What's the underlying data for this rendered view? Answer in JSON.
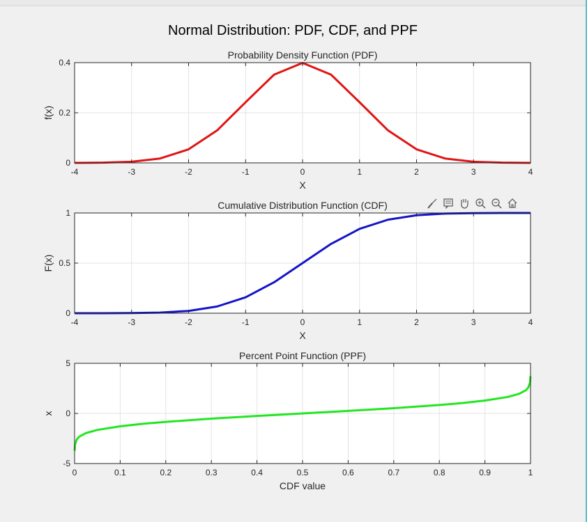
{
  "figure": {
    "title": "Normal Distribution: PDF, CDF, and PPF"
  },
  "toolbar": {
    "tools": [
      "brush-icon",
      "data-tips-icon",
      "pan-hand-icon",
      "zoom-in-icon",
      "zoom-out-icon",
      "home-icon"
    ]
  },
  "chart_data": [
    {
      "id": "pdf",
      "type": "line",
      "title": "Probability Density Function (PDF)",
      "xlabel": "X",
      "ylabel": "f(x)",
      "xlim": [
        -4,
        4
      ],
      "ylim": [
        0,
        0.4
      ],
      "xticks": [
        -4,
        -3,
        -2,
        -1,
        0,
        1,
        2,
        3,
        4
      ],
      "yticks": [
        0,
        0.2,
        0.4
      ],
      "xtick_labels": [
        "-4",
        "-3",
        "-2",
        "-1",
        "0",
        "1",
        "2",
        "3",
        "4"
      ],
      "ytick_labels": [
        "0",
        "0.2",
        "0.4"
      ],
      "grid": true,
      "series": [
        {
          "color": "#e01414",
          "x": [
            -4,
            -3.5,
            -3,
            -2.5,
            -2,
            -1.5,
            -1,
            -0.5,
            0,
            0.5,
            1,
            1.5,
            2,
            2.5,
            3,
            3.5,
            4
          ],
          "y": [
            0.0001,
            0.0009,
            0.0044,
            0.0175,
            0.054,
            0.1295,
            0.242,
            0.3521,
            0.3989,
            0.3521,
            0.242,
            0.1295,
            0.054,
            0.0175,
            0.0044,
            0.0009,
            0.0001
          ]
        }
      ]
    },
    {
      "id": "cdf",
      "type": "line",
      "title": "Cumulative Distribution Function (CDF)",
      "xlabel": "X",
      "ylabel": "F(x)",
      "xlim": [
        -4,
        4
      ],
      "ylim": [
        0,
        1
      ],
      "xticks": [
        -4,
        -3,
        -2,
        -1,
        0,
        1,
        2,
        3,
        4
      ],
      "yticks": [
        0,
        0.5,
        1
      ],
      "xtick_labels": [
        "-4",
        "-3",
        "-2",
        "-1",
        "0",
        "1",
        "2",
        "3",
        "4"
      ],
      "ytick_labels": [
        "0",
        "0.5",
        "1"
      ],
      "grid": true,
      "series": [
        {
          "color": "#1414c8",
          "x": [
            -4,
            -3.5,
            -3,
            -2.5,
            -2,
            -1.5,
            -1,
            -0.5,
            0,
            0.5,
            1,
            1.5,
            2,
            2.5,
            3,
            3.5,
            4
          ],
          "y": [
            0.0,
            0.0002,
            0.0013,
            0.0062,
            0.0228,
            0.0668,
            0.1587,
            0.3085,
            0.5,
            0.6915,
            0.8413,
            0.9332,
            0.9772,
            0.9938,
            0.9987,
            0.9998,
            1.0
          ]
        }
      ]
    },
    {
      "id": "ppf",
      "type": "line",
      "title": "Percent Point Function (PPF)",
      "xlabel": "CDF value",
      "ylabel": "x",
      "xlim": [
        0,
        1
      ],
      "ylim": [
        -5,
        5
      ],
      "xticks": [
        0,
        0.1,
        0.2,
        0.3,
        0.4,
        0.5,
        0.6,
        0.7,
        0.8,
        0.9,
        1
      ],
      "yticks": [
        -5,
        0,
        5
      ],
      "xtick_labels": [
        "0",
        "0.1",
        "0.2",
        "0.3",
        "0.4",
        "0.5",
        "0.6",
        "0.7",
        "0.8",
        "0.9",
        "1"
      ],
      "ytick_labels": [
        "-5",
        "0",
        "5"
      ],
      "grid": true,
      "series": [
        {
          "color": "#22e622",
          "x": [
            0.0001,
            0.001,
            0.005,
            0.01,
            0.025,
            0.05,
            0.1,
            0.15,
            0.2,
            0.3,
            0.4,
            0.5,
            0.6,
            0.7,
            0.8,
            0.85,
            0.9,
            0.95,
            0.975,
            0.99,
            0.995,
            0.999,
            0.9999
          ],
          "y": [
            -3.719,
            -3.09,
            -2.576,
            -2.326,
            -1.96,
            -1.645,
            -1.282,
            -1.036,
            -0.842,
            -0.524,
            -0.253,
            0,
            0.253,
            0.524,
            0.842,
            1.036,
            1.282,
            1.645,
            1.96,
            2.326,
            2.576,
            3.09,
            3.719
          ]
        }
      ]
    }
  ]
}
